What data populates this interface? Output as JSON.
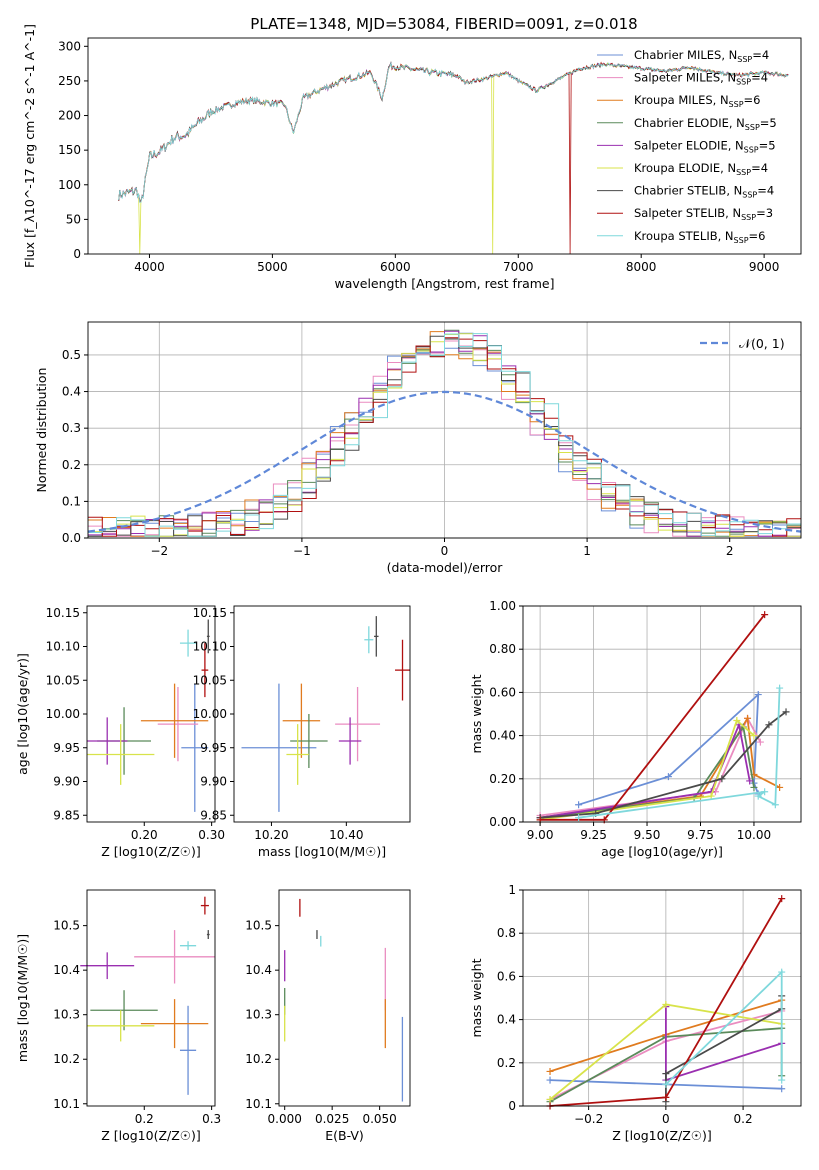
{
  "figure": {
    "title": "PLATE=1348, MJD=53084, FIBERID=0091, z=0.018"
  },
  "models": [
    {
      "name": "Chabrier MILES",
      "nssp": "4",
      "color": "#6b8fd6"
    },
    {
      "name": "Salpeter MILES",
      "nssp": "4",
      "color": "#ea8cc0"
    },
    {
      "name": "Kroupa MILES",
      "nssp": "6",
      "color": "#e07b1f"
    },
    {
      "name": "Chabrier ELODIE",
      "nssp": "5",
      "color": "#5a8a5a"
    },
    {
      "name": "Salpeter ELODIE",
      "nssp": "5",
      "color": "#9a2fb0"
    },
    {
      "name": "Kroupa ELODIE",
      "nssp": "4",
      "color": "#d8e34a"
    },
    {
      "name": "Chabrier STELIB",
      "nssp": "4",
      "color": "#4a4a4a"
    },
    {
      "name": "Salpeter STELIB",
      "nssp": "3",
      "color": "#b01010"
    },
    {
      "name": "Kroupa STELIB",
      "nssp": "6",
      "color": "#7fd8dc"
    }
  ],
  "chart_data": [
    {
      "id": "spectrum",
      "type": "line",
      "xlabel": "wavelength [Angstrom, rest frame]",
      "ylabel": "Flux [f_λ10^-17 erg cm^-2 s^-1 A^-1]",
      "xlim": [
        3500,
        9300
      ],
      "ylim": [
        0,
        312
      ],
      "xticks": [
        4000,
        5000,
        6000,
        7000,
        8000,
        9000
      ],
      "yticks": [
        0,
        50,
        100,
        150,
        200,
        250,
        300
      ],
      "legend_position": "right",
      "continuum": [
        [
          3750,
          85
        ],
        [
          3900,
          92
        ],
        [
          3930,
          70
        ],
        [
          4000,
          140
        ],
        [
          4100,
          150
        ],
        [
          4200,
          168
        ],
        [
          4300,
          172
        ],
        [
          4400,
          190
        ],
        [
          4500,
          205
        ],
        [
          4600,
          212
        ],
        [
          4700,
          218
        ],
        [
          4800,
          222
        ],
        [
          4900,
          220
        ],
        [
          5000,
          218
        ],
        [
          5100,
          216
        ],
        [
          5170,
          175
        ],
        [
          5250,
          225
        ],
        [
          5400,
          238
        ],
        [
          5600,
          252
        ],
        [
          5800,
          262
        ],
        [
          5893,
          225
        ],
        [
          5950,
          272
        ],
        [
          6100,
          268
        ],
        [
          6300,
          262
        ],
        [
          6500,
          258
        ],
        [
          6563,
          248
        ],
        [
          6700,
          252
        ],
        [
          6900,
          262
        ],
        [
          7000,
          250
        ],
        [
          7150,
          236
        ],
        [
          7300,
          250
        ],
        [
          7500,
          268
        ],
        [
          7700,
          274
        ],
        [
          7900,
          270
        ],
        [
          8200,
          264
        ],
        [
          8400,
          270
        ],
        [
          8600,
          262
        ],
        [
          8800,
          258
        ],
        [
          9000,
          262
        ],
        [
          9200,
          258
        ]
      ],
      "dropouts": [
        {
          "series": 5,
          "x": 3920
        },
        {
          "series": 5,
          "x": 6790
        },
        {
          "series": 7,
          "x": 7420
        }
      ]
    },
    {
      "id": "residuals",
      "type": "histogram",
      "xlabel": "(data-model)/error",
      "ylabel": "Normed distribution",
      "xlim": [
        -2.5,
        2.5
      ],
      "ylim": [
        0,
        0.59
      ],
      "xticks": [
        -2,
        -1,
        0,
        1,
        2
      ],
      "yticks": [
        0.0,
        0.1,
        0.2,
        0.3,
        0.4,
        0.5
      ],
      "grid": true,
      "reference_curve": "N(0,1)",
      "legend_position": "upper right"
    },
    {
      "id": "age-vs-Z",
      "type": "scatter",
      "xlabel": "Z [log10(Z/Z☉)]",
      "ylabel": "age  [log10(age/yr)]",
      "xlim": [
        0.115,
        0.305
      ],
      "ylim": [
        9.84,
        10.16
      ],
      "xticks": [
        0.2,
        0.3
      ],
      "yticks": [
        9.85,
        9.9,
        9.95,
        10.0,
        10.05,
        10.1,
        10.15
      ],
      "points": [
        {
          "s": 0,
          "x": 0.275,
          "y": 9.95,
          "xe": 0.02,
          "ye": 0.095
        },
        {
          "s": 1,
          "x": 0.25,
          "y": 9.985,
          "xe": 0.03,
          "ye": 0.055
        },
        {
          "s": 2,
          "x": 0.245,
          "y": 9.99,
          "xe": 0.05,
          "ye": 0.055
        },
        {
          "s": 3,
          "x": 0.17,
          "y": 9.96,
          "xe": 0.04,
          "ye": 0.05
        },
        {
          "s": 4,
          "x": 0.145,
          "y": 9.96,
          "xe": 0.03,
          "ye": 0.035
        },
        {
          "s": 5,
          "x": 0.165,
          "y": 9.94,
          "xe": 0.05,
          "ye": 0.045
        },
        {
          "s": 6,
          "x": 0.295,
          "y": 10.115,
          "xe": 0.002,
          "ye": 0.025
        },
        {
          "s": 7,
          "x": 0.29,
          "y": 10.065,
          "xe": 0.005,
          "ye": 0.04
        },
        {
          "s": 8,
          "x": 0.265,
          "y": 10.105,
          "xe": 0.012,
          "ye": 0.02
        }
      ]
    },
    {
      "id": "age-vs-mass",
      "type": "scatter",
      "xlabel": "mass [log10(M/M☉)]",
      "ylabel": "",
      "xlim": [
        10.1,
        10.57
      ],
      "ylim": [
        9.84,
        10.16
      ],
      "xticks": [
        10.2,
        10.4
      ],
      "yticks": [
        9.85,
        9.9,
        9.95,
        10.0,
        10.05,
        10.1,
        10.15
      ],
      "points": [
        {
          "s": 0,
          "x": 10.22,
          "y": 9.95,
          "xe": 0.1,
          "ye": 0.095
        },
        {
          "s": 1,
          "x": 10.43,
          "y": 9.985,
          "xe": 0.06,
          "ye": 0.055
        },
        {
          "s": 2,
          "x": 10.28,
          "y": 9.99,
          "xe": 0.05,
          "ye": 0.055
        },
        {
          "s": 3,
          "x": 10.3,
          "y": 9.96,
          "xe": 0.05,
          "ye": 0.04
        },
        {
          "s": 4,
          "x": 10.41,
          "y": 9.96,
          "xe": 0.03,
          "ye": 0.035
        },
        {
          "s": 5,
          "x": 10.27,
          "y": 9.94,
          "xe": 0.03,
          "ye": 0.045
        },
        {
          "s": 6,
          "x": 10.48,
          "y": 10.115,
          "xe": 0.006,
          "ye": 0.03
        },
        {
          "s": 7,
          "x": 10.55,
          "y": 10.065,
          "xe": 0.02,
          "ye": 0.045
        },
        {
          "s": 8,
          "x": 10.46,
          "y": 10.11,
          "xe": 0.012,
          "ye": 0.02
        }
      ]
    },
    {
      "id": "weight-vs-age",
      "type": "line",
      "xlabel": "age  [log10(age/yr)]",
      "ylabel": "mass weight",
      "xlim": [
        8.92,
        10.22
      ],
      "ylim": [
        0,
        1
      ],
      "xticks": [
        9.0,
        9.25,
        9.5,
        9.75,
        10.0
      ],
      "yticks": [
        0.0,
        0.2,
        0.4,
        0.6,
        0.8,
        1.0
      ],
      "grid": true,
      "series": [
        {
          "s": 0,
          "points": [
            [
              9.18,
              0.08
            ],
            [
              9.6,
              0.21
            ],
            [
              10.02,
              0.59
            ],
            [
              10.0,
              0.18
            ],
            [
              10.02,
              0.13
            ]
          ]
        },
        {
          "s": 1,
          "points": [
            [
              9.0,
              0.03
            ],
            [
              9.82,
              0.14
            ],
            [
              9.97,
              0.48
            ],
            [
              10.03,
              0.37
            ]
          ]
        },
        {
          "s": 2,
          "points": [
            [
              9.0,
              0.02
            ],
            [
              9.75,
              0.12
            ],
            [
              9.97,
              0.48
            ],
            [
              10.0,
              0.22
            ],
            [
              10.12,
              0.16
            ]
          ]
        },
        {
          "s": 3,
          "points": [
            [
              9.0,
              0.02
            ],
            [
              9.72,
              0.11
            ],
            [
              9.95,
              0.44
            ],
            [
              10.0,
              0.16
            ]
          ]
        },
        {
          "s": 4,
          "points": [
            [
              9.0,
              0.02
            ],
            [
              9.8,
              0.14
            ],
            [
              9.93,
              0.45
            ],
            [
              9.98,
              0.19
            ]
          ]
        },
        {
          "s": 5,
          "points": [
            [
              9.0,
              0.01
            ],
            [
              9.8,
              0.12
            ],
            [
              9.92,
              0.47
            ],
            [
              10.0,
              0.4
            ]
          ]
        },
        {
          "s": 6,
          "points": [
            [
              9.0,
              0.02
            ],
            [
              9.26,
              0.04
            ],
            [
              9.85,
              0.2
            ],
            [
              10.07,
              0.45
            ],
            [
              10.15,
              0.51
            ]
          ]
        },
        {
          "s": 7,
          "points": [
            [
              9.0,
              0.01
            ],
            [
              9.3,
              0.01
            ],
            [
              10.05,
              0.96
            ]
          ]
        },
        {
          "s": 8,
          "points": [
            [
              9.18,
              0.02
            ],
            [
              10.05,
              0.14
            ],
            [
              10.02,
              0.12
            ],
            [
              10.1,
              0.08
            ],
            [
              10.12,
              0.62
            ]
          ]
        }
      ]
    },
    {
      "id": "mass-vs-Z",
      "type": "scatter",
      "xlabel": "Z [log10(Z/Z☉)]",
      "ylabel": "mass [log10(M/M☉)]",
      "xlim": [
        0.115,
        0.305
      ],
      "ylim": [
        10.095,
        10.58
      ],
      "xticks": [
        0.2,
        0.3
      ],
      "yticks": [
        10.1,
        10.2,
        10.3,
        10.4,
        10.5
      ],
      "points": [
        {
          "s": 0,
          "x": 0.265,
          "y": 10.22,
          "xe": 0.012,
          "ye": 0.1
        },
        {
          "s": 1,
          "x": 0.245,
          "y": 10.43,
          "xe": 0.06,
          "ye": 0.06
        },
        {
          "s": 2,
          "x": 0.245,
          "y": 10.28,
          "xe": 0.05,
          "ye": 0.055
        },
        {
          "s": 3,
          "x": 0.17,
          "y": 10.31,
          "xe": 0.05,
          "ye": 0.045
        },
        {
          "s": 4,
          "x": 0.145,
          "y": 10.41,
          "xe": 0.04,
          "ye": 0.03
        },
        {
          "s": 5,
          "x": 0.165,
          "y": 10.275,
          "xe": 0.05,
          "ye": 0.035
        },
        {
          "s": 6,
          "x": 0.295,
          "y": 10.48,
          "xe": 0.002,
          "ye": 0.01
        },
        {
          "s": 7,
          "x": 0.29,
          "y": 10.545,
          "xe": 0.006,
          "ye": 0.02
        },
        {
          "s": 8,
          "x": 0.265,
          "y": 10.455,
          "xe": 0.012,
          "ye": 0.01
        }
      ]
    },
    {
      "id": "mass-vs-EBV",
      "type": "scatter",
      "xlabel": "E(B-V)",
      "ylabel": "",
      "xlim": [
        -0.003,
        0.066
      ],
      "ylim": [
        10.095,
        10.58
      ],
      "xticks": [
        0.0,
        0.025,
        0.05
      ],
      "yticks": [
        10.1,
        10.2,
        10.3,
        10.4,
        10.5
      ],
      "points": [
        {
          "s": 0,
          "x": 0.062,
          "y": 10.2,
          "xe": 0,
          "ye": 0.095
        },
        {
          "s": 1,
          "x": 0.053,
          "y": 10.38,
          "xe": 0,
          "ye": 0.07
        },
        {
          "s": 2,
          "x": 0.053,
          "y": 10.28,
          "xe": 0,
          "ye": 0.055
        },
        {
          "s": 3,
          "x": 0.0,
          "y": 10.33,
          "xe": 0,
          "ye": 0.03
        },
        {
          "s": 4,
          "x": 0.0,
          "y": 10.41,
          "xe": 0,
          "ye": 0.035
        },
        {
          "s": 5,
          "x": 0.0,
          "y": 10.28,
          "xe": 0,
          "ye": 0.04
        },
        {
          "s": 6,
          "x": 0.017,
          "y": 10.48,
          "xe": 0,
          "ye": 0.01
        },
        {
          "s": 7,
          "x": 0.008,
          "y": 10.54,
          "xe": 0,
          "ye": 0.02
        },
        {
          "s": 8,
          "x": 0.019,
          "y": 10.465,
          "xe": 0,
          "ye": 0.012
        }
      ]
    },
    {
      "id": "weight-vs-Z",
      "type": "line",
      "xlabel": "Z [log10(Z/Z☉)]",
      "ylabel": "mass weight",
      "xlim": [
        -0.37,
        0.35
      ],
      "ylim": [
        0,
        1
      ],
      "xticks": [
        -0.2,
        0.0,
        0.2
      ],
      "yticks": [
        0.0,
        0.2,
        0.4,
        0.6,
        0.8,
        1.0
      ],
      "grid": true,
      "series": [
        {
          "s": 0,
          "points": [
            [
              -0.3,
              0.12
            ],
            [
              0.0,
              0.1
            ],
            [
              0.3,
              0.08
            ]
          ]
        },
        {
          "s": 1,
          "points": [
            [
              -0.3,
              0.03
            ],
            [
              0.0,
              0.3
            ],
            [
              0.3,
              0.44
            ]
          ]
        },
        {
          "s": 2,
          "points": [
            [
              -0.3,
              0.16
            ],
            [
              0.0,
              0.33
            ],
            [
              0.3,
              0.49
            ]
          ]
        },
        {
          "s": 3,
          "points": [
            [
              -0.3,
              0.02
            ],
            [
              0.0,
              0.32
            ],
            [
              0.3,
              0.36
            ],
            [
              0.3,
              0.14
            ]
          ]
        },
        {
          "s": 4,
          "points": [
            [
              0.0,
              0.46
            ],
            [
              0.0,
              0.12
            ],
            [
              0.3,
              0.29
            ]
          ]
        },
        {
          "s": 5,
          "points": [
            [
              -0.3,
              0.03
            ],
            [
              0.0,
              0.47
            ],
            [
              0.3,
              0.38
            ]
          ]
        },
        {
          "s": 6,
          "points": [
            [
              0.0,
              0.02
            ],
            [
              0.0,
              0.15
            ],
            [
              0.3,
              0.45
            ],
            [
              0.3,
              0.51
            ]
          ]
        },
        {
          "s": 7,
          "points": [
            [
              -0.3,
              0.0
            ],
            [
              0.0,
              0.04
            ],
            [
              0.3,
              0.96
            ]
          ]
        },
        {
          "s": 8,
          "points": [
            [
              0.0,
              0.1
            ],
            [
              0.3,
              0.62
            ],
            [
              0.3,
              0.12
            ]
          ]
        }
      ]
    }
  ]
}
